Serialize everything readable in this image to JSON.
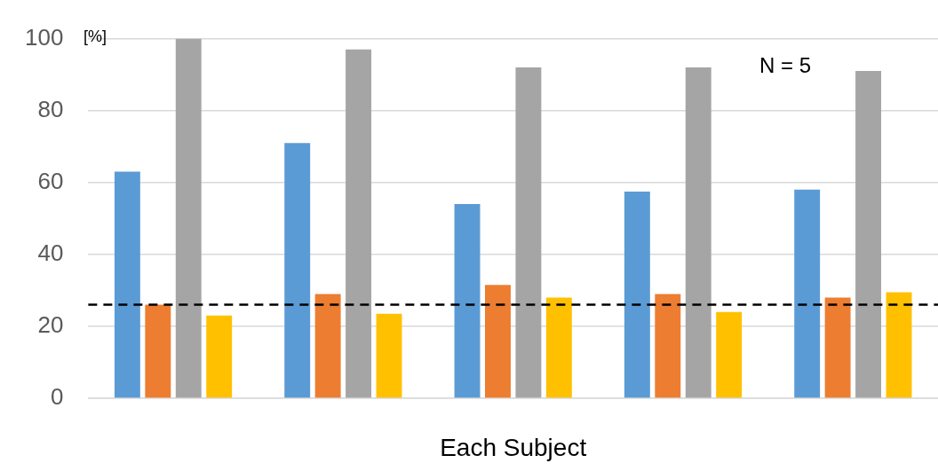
{
  "chart_data": {
    "type": "bar",
    "xlabel": "Each Subject",
    "ylabel": "[%]",
    "categories": [
      null,
      null,
      null,
      null,
      null
    ],
    "series": [
      {
        "color": "#5b9bd5",
        "values": [
          63,
          71,
          54,
          57.5,
          58
        ]
      },
      {
        "color": "#ed7d31",
        "values": [
          26,
          29,
          31.5,
          29,
          28
        ]
      },
      {
        "color": "#a5a5a5",
        "values": [
          100,
          97,
          92,
          92,
          91
        ]
      },
      {
        "color": "#ffc000",
        "values": [
          23,
          23.5,
          28,
          24,
          29.5
        ]
      }
    ],
    "ylim": [
      0,
      100
    ],
    "yticks": [
      0,
      20,
      40,
      60,
      80,
      100
    ],
    "grid": "y",
    "legend": false,
    "ref_lines": [
      {
        "axis": "y",
        "value": 26,
        "label": null,
        "color": "#000000",
        "line_style": "dashed"
      }
    ],
    "annotations": [
      "N = 5"
    ]
  }
}
